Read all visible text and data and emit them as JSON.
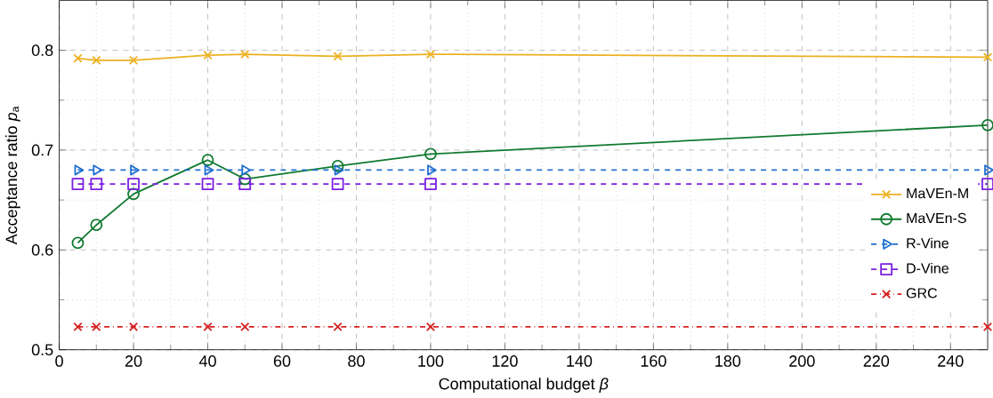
{
  "chart_data": {
    "type": "line",
    "xlabel": "Computational budget *β*",
    "ylabel": "Acceptance ratio *p*$_{a}$",
    "x": [
      5,
      10,
      20,
      40,
      50,
      75,
      100,
      250
    ],
    "xlim": [
      0,
      250
    ],
    "ylim": [
      0.5,
      0.85
    ],
    "xticks": [
      0,
      20,
      40,
      60,
      80,
      100,
      120,
      140,
      160,
      180,
      200,
      220,
      240
    ],
    "yticks": [
      0.5,
      0.6,
      0.7,
      0.8
    ],
    "grid": true,
    "legend": "right",
    "series": [
      {
        "name": "MaVEn-M",
        "color": "#edb120",
        "marker": "cross",
        "line_style": "solid",
        "values": [
          0.792,
          0.79,
          0.79,
          0.795,
          0.796,
          0.794,
          0.796,
          0.793
        ]
      },
      {
        "name": "MaVEn-S",
        "color": "#117a30",
        "marker": "circle",
        "line_style": "solid",
        "values": [
          0.607,
          0.625,
          0.656,
          0.69,
          0.671,
          0.684,
          0.696,
          0.725
        ]
      },
      {
        "name": "R-Vine",
        "color": "#1f6fd0",
        "marker": "triangle",
        "line_style": "dashed",
        "values": [
          0.68,
          0.68,
          0.68,
          0.68,
          0.68,
          0.68,
          0.68,
          0.68
        ]
      },
      {
        "name": "D-Vine",
        "color": "#7b1fe0",
        "marker": "square",
        "line_style": "dashed",
        "values": [
          0.666,
          0.666,
          0.666,
          0.666,
          0.666,
          0.666,
          0.666,
          0.666
        ]
      },
      {
        "name": "GRC",
        "color": "#d62020",
        "marker": "cross",
        "line_style": "dashdot",
        "values": [
          0.523,
          0.523,
          0.523,
          0.523,
          0.523,
          0.523,
          0.523,
          0.523
        ]
      }
    ]
  }
}
